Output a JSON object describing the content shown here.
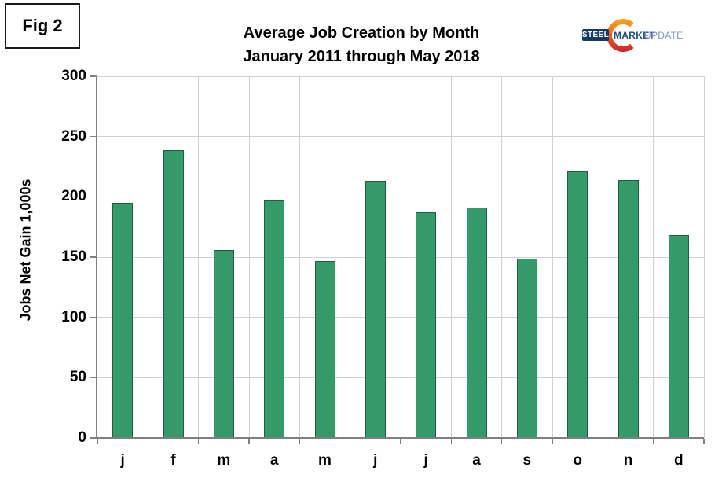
{
  "figure_label": "Fig 2",
  "title": {
    "line1": "Average Job Creation by Month",
    "line2": "January 2011 through May 2018"
  },
  "logo": {
    "steel": "STEEL",
    "market": "MARKET",
    "update": "UPDATE",
    "steel_box_color": "#163a64",
    "market_color": "#1d4e89",
    "update_color": "#7b97c6",
    "crescent_top_color": "#f7a823",
    "crescent_mid_color": "#e8611c",
    "crescent_bottom_color": "#c9232c"
  },
  "chart_data": {
    "type": "bar",
    "title": "Average Job Creation by Month — January 2011 through May 2018",
    "categories": [
      "j",
      "f",
      "m",
      "a",
      "m",
      "j",
      "j",
      "a",
      "s",
      "o",
      "n",
      "d"
    ],
    "values": [
      195,
      239,
      156,
      197,
      147,
      213,
      187,
      191,
      149,
      221,
      214,
      168
    ],
    "ylabel": "Jobs Net Gain 1,000s",
    "ylim": [
      0,
      300
    ],
    "ytick_step": 50,
    "yticks": [
      0,
      50,
      100,
      150,
      200,
      250,
      300
    ],
    "grid": true,
    "legend": "none",
    "bar_color": "#349a67",
    "bar_border_color": "#235c40",
    "gridline_color": "#d0d0d0",
    "axis_color": "#7f7f7f"
  }
}
